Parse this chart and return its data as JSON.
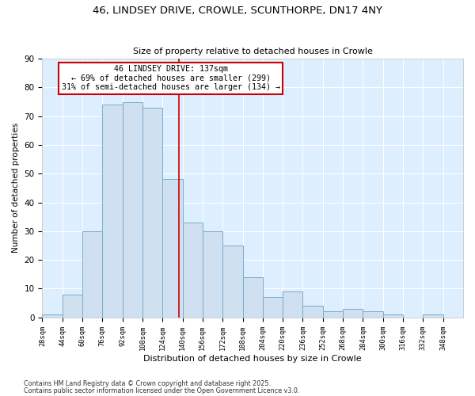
{
  "title": "46, LINDSEY DRIVE, CROWLE, SCUNTHORPE, DN17 4NY",
  "subtitle": "Size of property relative to detached houses in Crowle",
  "xlabel": "Distribution of detached houses by size in Crowle",
  "ylabel": "Number of detached properties",
  "bin_labels": [
    "28sqm",
    "44sqm",
    "60sqm",
    "76sqm",
    "92sqm",
    "108sqm",
    "124sqm",
    "140sqm",
    "156sqm",
    "172sqm",
    "188sqm",
    "204sqm",
    "220sqm",
    "236sqm",
    "252sqm",
    "268sqm",
    "284sqm",
    "300sqm",
    "316sqm",
    "332sqm",
    "348sqm"
  ],
  "bin_edges": [
    28,
    44,
    60,
    76,
    92,
    108,
    124,
    140,
    156,
    172,
    188,
    204,
    220,
    236,
    252,
    268,
    284,
    300,
    316,
    332,
    348
  ],
  "bin_width": 16,
  "counts": [
    1,
    8,
    30,
    74,
    75,
    73,
    48,
    33,
    30,
    25,
    14,
    7,
    9,
    4,
    2,
    3,
    2,
    1,
    0,
    1
  ],
  "bar_facecolor": "#cfe0f0",
  "bar_edgecolor": "#7aaecc",
  "bar_linewidth": 0.7,
  "vline_x": 137,
  "vline_color": "#cc0000",
  "annotation_title": "46 LINDSEY DRIVE: 137sqm",
  "annotation_line2": "← 69% of detached houses are smaller (299)",
  "annotation_line3": "31% of semi-detached houses are larger (134) →",
  "annotation_box_edgecolor": "#cc0000",
  "annotation_box_facecolor": "#ffffff",
  "ylim": [
    0,
    90
  ],
  "yticks": [
    0,
    10,
    20,
    30,
    40,
    50,
    60,
    70,
    80,
    90
  ],
  "fig_facecolor": "#ffffff",
  "plot_facecolor": "#ddeeff",
  "grid_color": "#ffffff",
  "footnote1": "Contains HM Land Registry data © Crown copyright and database right 2025.",
  "footnote2": "Contains public sector information licensed under the Open Government Licence v3.0."
}
